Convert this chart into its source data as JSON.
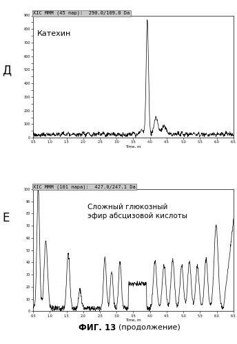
{
  "panel_D": {
    "label": "Д",
    "title": "XIC МММ (45 пар):  290.0/109.0 Da",
    "annotation": "Катехин",
    "xlabel": "Time, m",
    "xlim": [
      0.5,
      6.5
    ],
    "ylim": [
      0,
      900
    ],
    "ytick_step": 50,
    "ytick_label_step": 100,
    "xtick_vals": [
      0.5,
      1.0,
      1.5,
      2.0,
      2.5,
      3.0,
      3.5,
      4.0,
      4.5,
      5.0,
      5.5,
      6.0,
      6.5
    ],
    "xtick_labels": [
      "0.5",
      "1.0",
      "1.5",
      "2.0",
      "2.5",
      "3.0",
      "3.5",
      "4.0",
      "4.5",
      "5.0",
      "5.5",
      "6.0",
      "6.5"
    ]
  },
  "panel_E": {
    "label": "Е",
    "title": "XIC МММ (101 пара):  427.0/247.1 Da",
    "annotation": "Сложный глюкозный\nэфир абсцизовой кислоты",
    "xlabel": "Time, m",
    "xlim": [
      0.5,
      6.5
    ],
    "ylim": [
      0,
      100
    ],
    "ytick_step": 10,
    "ytick_label_step": 10,
    "xtick_vals": [
      0.5,
      1.0,
      1.5,
      2.0,
      2.5,
      3.0,
      3.5,
      4.0,
      4.5,
      5.0,
      5.5,
      6.0,
      6.5
    ],
    "xtick_labels": [
      "0.5",
      "1.0",
      "1.5",
      "2.0",
      "2.5",
      "3.0",
      "3.5",
      "4.0",
      "4.5",
      "5.0",
      "5.5",
      "6.0",
      "6.5"
    ]
  },
  "figure_label": "ФИГ. 13 (продолжение)",
  "bg_color": "#ffffff",
  "line_color": "#000000",
  "title_bg_color": "#c8c8c8"
}
